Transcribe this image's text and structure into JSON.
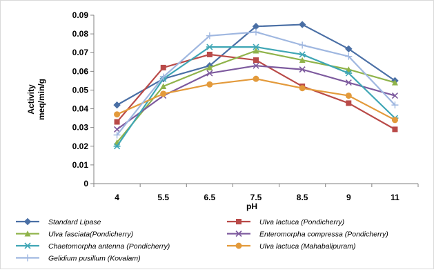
{
  "chart_data": {
    "type": "line",
    "xlabel": "pH",
    "ylabel": [
      "Activity",
      "meq/min/g"
    ],
    "categories": [
      "4",
      "5.5",
      "6.5",
      "7.5",
      "8.5",
      "9",
      "11"
    ],
    "ylim": [
      0,
      0.09
    ],
    "yticks": [
      "0",
      "0.01",
      "0.02",
      "0.03",
      "0.04",
      "0.05",
      "0.06",
      "0.07",
      "0.08",
      "0.09"
    ],
    "grid": false,
    "legend_position": "bottom",
    "series": [
      {
        "name": "Standard Lipase",
        "color": "#4a6fa5",
        "marker": "diamond",
        "values": [
          0.042,
          0.056,
          0.063,
          0.084,
          0.085,
          0.072,
          0.055
        ]
      },
      {
        "name": "Ulva lactuca (Pondicherry)",
        "color": "#b94a48",
        "marker": "square",
        "values": [
          0.033,
          0.062,
          0.069,
          0.066,
          0.052,
          0.043,
          0.029
        ]
      },
      {
        "name": "Ulva fasciata(Pondicherry)",
        "color": "#8fb34a",
        "marker": "triangle",
        "values": [
          0.022,
          0.052,
          0.062,
          0.071,
          0.066,
          0.061,
          0.054
        ]
      },
      {
        "name": "Enteromorpha compressa (Pondicherry)",
        "color": "#7d5a9e",
        "marker": "x",
        "values": [
          0.029,
          0.047,
          0.059,
          0.063,
          0.061,
          0.054,
          0.047
        ]
      },
      {
        "name": "Chaetomorpha antenna (Pondicherry)",
        "color": "#3fa6b5",
        "marker": "star",
        "values": [
          0.02,
          0.056,
          0.073,
          0.073,
          0.069,
          0.059,
          0.035
        ]
      },
      {
        "name": "Ulva lactuca (Mahabalipuram)",
        "color": "#e39a3b",
        "marker": "circle",
        "values": [
          0.037,
          0.048,
          0.053,
          0.056,
          0.051,
          0.047,
          0.034
        ]
      },
      {
        "name": "Gelidium pusillum (Kovalam)",
        "color": "#9fb7e0",
        "marker": "plus",
        "values": [
          0.026,
          0.057,
          0.079,
          0.081,
          0.074,
          0.068,
          0.042
        ]
      }
    ]
  }
}
